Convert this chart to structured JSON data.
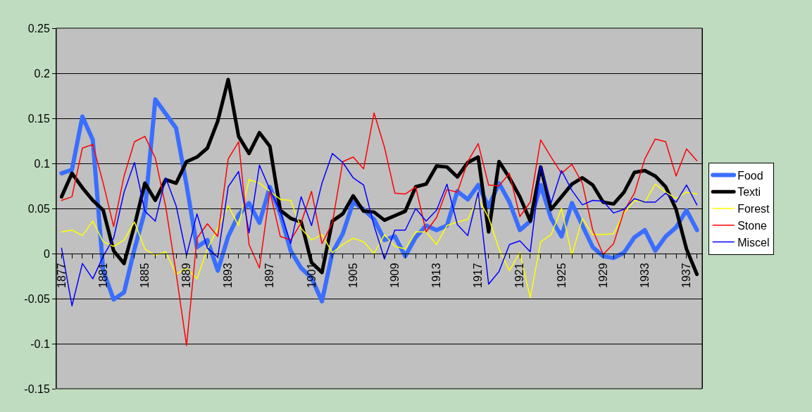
{
  "chart_data": {
    "type": "line",
    "categories": [
      "1877",
      null,
      null,
      null,
      "1881",
      null,
      null,
      null,
      "1885",
      null,
      null,
      null,
      "1889",
      null,
      null,
      null,
      "1893",
      null,
      null,
      null,
      "1897",
      null,
      null,
      null,
      "1901",
      null,
      null,
      null,
      "1905",
      null,
      null,
      null,
      "1909",
      null,
      null,
      null,
      "1913",
      null,
      null,
      null,
      "1917",
      null,
      null,
      null,
      "1921",
      null,
      null,
      null,
      "1925",
      null,
      null,
      null,
      "1929",
      null,
      null,
      null,
      "1933",
      null,
      null,
      null,
      "1937",
      null
    ],
    "series": [
      {
        "name": "Food",
        "color": "#3a6eff",
        "values": [
          0.089,
          0.093,
          0.152,
          0.126,
          -0.019,
          -0.051,
          -0.043,
          0.005,
          0.047,
          0.171,
          0.155,
          0.139,
          0.076,
          0.007,
          0.015,
          -0.019,
          0.019,
          0.043,
          0.056,
          0.034,
          0.074,
          0.044,
          0.003,
          -0.016,
          -0.027,
          -0.053,
          0.001,
          0.022,
          0.057,
          0.049,
          0.038,
          0.015,
          0.019,
          -0.003,
          0.018,
          0.031,
          0.026,
          0.031,
          0.069,
          0.06,
          0.076,
          0.052,
          0.078,
          0.057,
          0.026,
          0.036,
          0.076,
          0.039,
          0.019,
          0.056,
          0.031,
          0.007,
          -0.003,
          -0.005,
          0.001,
          0.018,
          0.026,
          0.003,
          0.019,
          0.029,
          0.048,
          0.026
        ]
      },
      {
        "name": "Texti",
        "color": "#000000",
        "values": [
          0.063,
          0.089,
          0.073,
          0.059,
          0.048,
          0.003,
          -0.011,
          0.031,
          0.078,
          0.059,
          0.082,
          0.078,
          0.102,
          0.107,
          0.117,
          0.147,
          0.193,
          0.13,
          0.111,
          0.134,
          0.119,
          0.048,
          0.039,
          0.035,
          -0.01,
          -0.021,
          0.036,
          0.044,
          0.064,
          0.047,
          0.046,
          0.037,
          0.042,
          0.047,
          0.074,
          0.077,
          0.097,
          0.096,
          0.085,
          0.101,
          0.107,
          0.024,
          0.102,
          0.084,
          0.063,
          0.036,
          0.096,
          0.049,
          0.063,
          0.077,
          0.084,
          0.076,
          0.057,
          0.055,
          0.068,
          0.09,
          0.092,
          0.086,
          0.074,
          0.049,
          0.005,
          -0.023
        ]
      },
      {
        "name": "Forest",
        "color": "#ffff00",
        "values": [
          0.024,
          0.026,
          0.02,
          0.036,
          0.013,
          0.008,
          0.015,
          0.035,
          0.005,
          -0.002,
          0.002,
          -0.023,
          -0.016,
          -0.028,
          0.005,
          0.028,
          0.053,
          0.031,
          0.082,
          0.078,
          0.069,
          0.06,
          0.059,
          0.028,
          0.015,
          0.021,
          0.001,
          0.01,
          0.017,
          0.013,
          0.0,
          0.021,
          0.008,
          0.005,
          0.024,
          0.024,
          0.01,
          0.031,
          0.035,
          0.038,
          0.061,
          0.04,
          0.005,
          -0.019,
          0.001,
          -0.049,
          0.013,
          0.021,
          0.05,
          -0.002,
          0.039,
          0.021,
          0.021,
          0.022,
          0.045,
          0.059,
          0.057,
          0.077,
          0.068,
          0.061,
          0.068,
          0.066
        ]
      },
      {
        "name": "Stone",
        "color": "#ff0000",
        "values": [
          0.059,
          0.063,
          0.117,
          0.121,
          0.078,
          0.03,
          0.086,
          0.124,
          0.13,
          0.106,
          0.052,
          -0.022,
          -0.102,
          0.017,
          0.033,
          0.019,
          0.105,
          0.124,
          0.01,
          -0.016,
          0.069,
          0.019,
          0.015,
          0.034,
          0.069,
          0.011,
          0.034,
          0.102,
          0.107,
          0.094,
          0.156,
          0.118,
          0.067,
          0.066,
          0.074,
          0.024,
          0.04,
          0.071,
          0.068,
          0.102,
          0.122,
          0.076,
          0.075,
          0.089,
          0.041,
          0.057,
          0.126,
          0.107,
          0.089,
          0.099,
          0.078,
          0.026,
          -0.001,
          0.011,
          0.047,
          0.067,
          0.105,
          0.127,
          0.124,
          0.086,
          0.116,
          0.103
        ]
      },
      {
        "name": "Miscel",
        "color": "#0000ff",
        "values": [
          0.006,
          -0.058,
          -0.011,
          -0.028,
          -0.003,
          0.017,
          0.068,
          0.101,
          0.047,
          0.036,
          0.084,
          0.053,
          -0.002,
          0.044,
          0.006,
          -0.004,
          0.074,
          0.091,
          0.023,
          0.098,
          0.071,
          0.047,
          0.011,
          0.063,
          0.031,
          0.078,
          0.111,
          0.101,
          0.084,
          0.076,
          0.031,
          -0.006,
          0.026,
          0.026,
          0.05,
          0.036,
          0.048,
          0.077,
          0.032,
          0.02,
          0.068,
          -0.034,
          -0.02,
          0.01,
          0.014,
          0.002,
          0.097,
          0.056,
          0.092,
          0.07,
          0.054,
          0.059,
          0.058,
          0.045,
          0.049,
          0.061,
          0.057,
          0.057,
          0.067,
          0.057,
          0.076,
          0.054
        ]
      }
    ],
    "ylim": [
      -0.15,
      0.25
    ],
    "yticks": [
      -0.15,
      -0.1,
      -0.05,
      0,
      0.05,
      0.1,
      0.15,
      0.2,
      0.25
    ],
    "grid": "y",
    "legend": "right",
    "marker": "none",
    "line_style": "solid"
  }
}
